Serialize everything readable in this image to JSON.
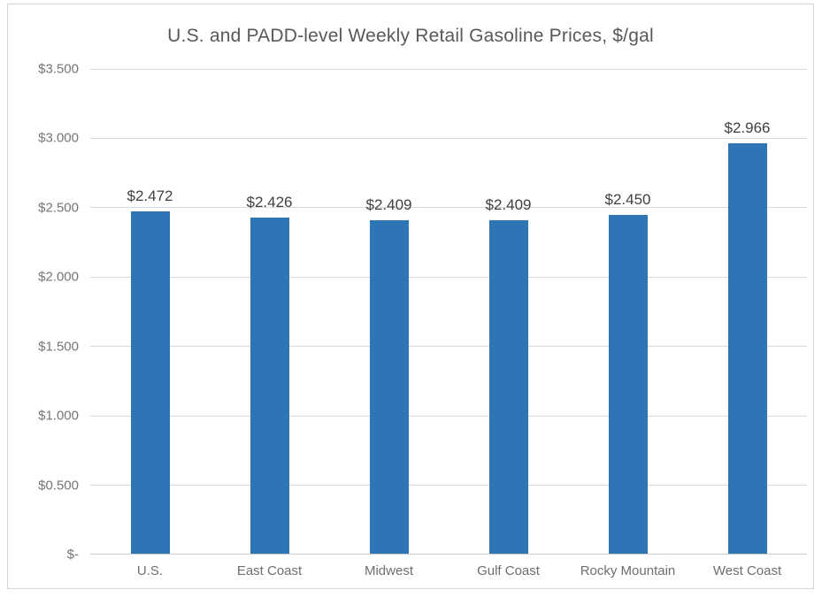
{
  "chart_data": {
    "type": "bar",
    "title": "U.S. and PADD-level Weekly Retail Gasoline Prices, $/gal",
    "categories": [
      "U.S.",
      "East Coast",
      "Midwest",
      "Gulf Coast",
      "Rocky Mountain",
      "West Coast"
    ],
    "values": [
      2.472,
      2.426,
      2.409,
      2.409,
      2.45,
      2.966
    ],
    "value_labels": [
      "$2.472",
      "$2.426",
      "$2.409",
      "$2.409",
      "$2.450",
      "$2.966"
    ],
    "xlabel": "",
    "ylabel": "",
    "ylim": [
      0,
      3.5
    ],
    "y_ticks": [
      {
        "value": 3.5,
        "label": "$3.500"
      },
      {
        "value": 3.0,
        "label": "$3.000"
      },
      {
        "value": 2.5,
        "label": "$2.500"
      },
      {
        "value": 2.0,
        "label": "$2.000"
      },
      {
        "value": 1.5,
        "label": "$1.500"
      },
      {
        "value": 1.0,
        "label": "$1.000"
      },
      {
        "value": 0.5,
        "label": "$0.500"
      },
      {
        "value": 0.0,
        "label": "$-"
      }
    ],
    "grid": true,
    "legend": false,
    "colors": {
      "bar": "#2e75b6",
      "gridline": "#d9d9d9",
      "axis_line": "#c9c9c9",
      "title": "#595959",
      "tick_label": "#757575",
      "data_label": "#404040"
    }
  }
}
